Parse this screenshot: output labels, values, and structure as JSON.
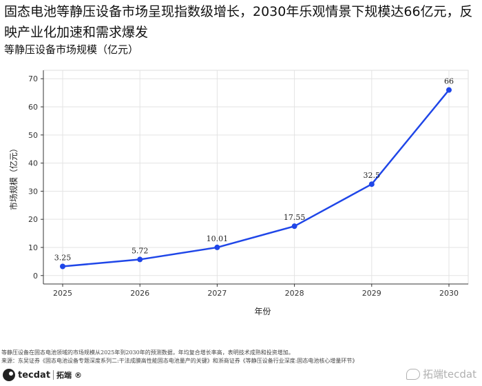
{
  "title": "固态电池等静压设备市场呈现指数级增长，2030年乐观情景下规模达66亿元，反映产业化加速和需求爆发",
  "subtitle": "等静压设备市场规模（亿元）",
  "chart_data": {
    "type": "line",
    "x": [
      "2025",
      "2026",
      "2027",
      "2028",
      "2029",
      "2030"
    ],
    "series": [
      {
        "values": [
          3.25,
          5.72,
          10.01,
          17.55,
          32.5,
          66
        ],
        "color": "#1f46e8"
      }
    ],
    "data_labels": [
      "3.25",
      "5.72",
      "10.01",
      "17.55",
      "32.5",
      "66"
    ],
    "xlabel": "年份",
    "ylabel": "市场规模（亿元）",
    "ylim": [
      -3,
      73
    ],
    "yticks": [
      0,
      10,
      20,
      30,
      40,
      50,
      60,
      70
    ],
    "grid": true,
    "legend": "none"
  },
  "footer": {
    "note": "等静压设备在固态电池领域的市场规模从2025年到2030年的预测数据，年均复合增长率高，表明技术成熟和投资增加。",
    "source": "来源：东吴证券《固态电池设备专题深度系列二:干法成膜高性能固态电池量产的关键》和浙商证券《等静压设备行业深度:固态电池核心增量环节》"
  },
  "logo": {
    "text": "tecdat",
    "cn": "拓端",
    "mark": "®"
  },
  "watermark": {
    "text": "拓端tecdat",
    "icon": "weibo-icon"
  }
}
